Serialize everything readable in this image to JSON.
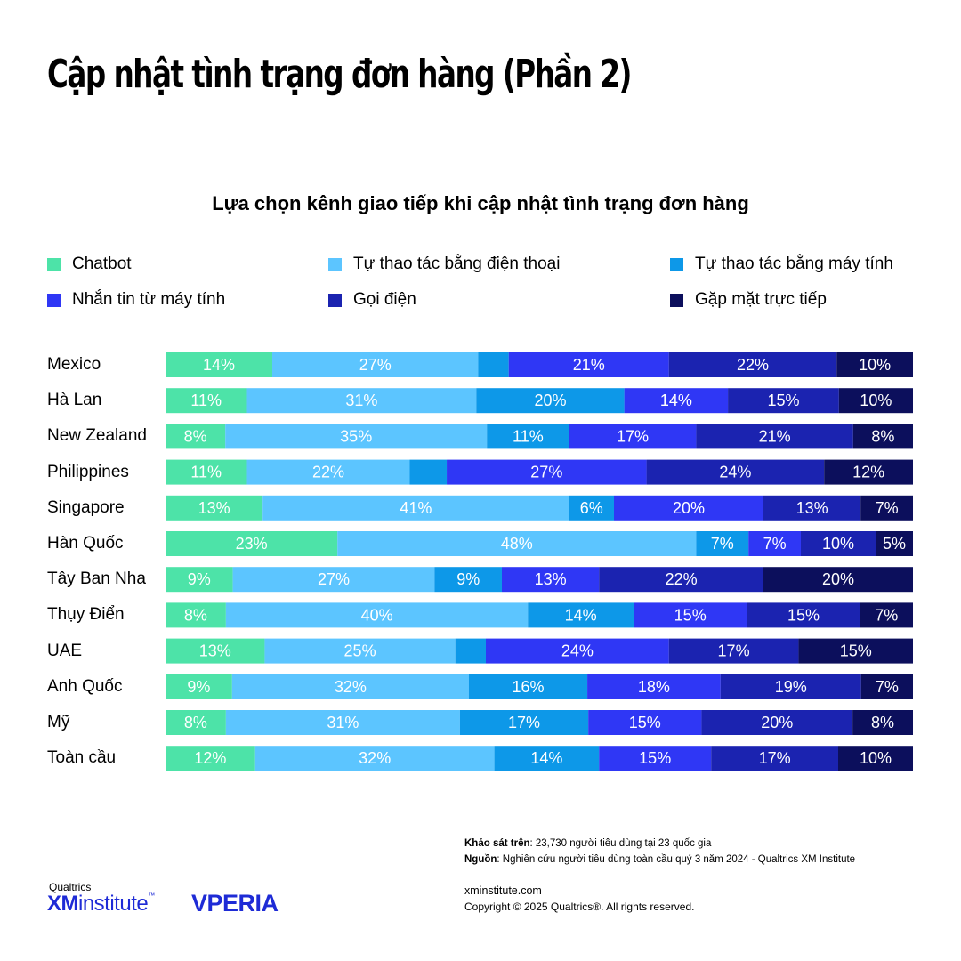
{
  "title": "Cập nhật tình trạng đơn hàng (Phần 2)",
  "chart_data": {
    "type": "bar",
    "orientation": "horizontal",
    "stacked": true,
    "title": "Lựa chọn kênh giao tiếp khi cập nhật tình trạng đơn hàng",
    "legend_position": "top",
    "categories": [
      "Mexico",
      "Hà Lan",
      "New Zealand",
      "Philippines",
      "Singapore",
      "Hàn Quốc",
      "Tây Ban Nha",
      "Thụy Điển",
      "UAE",
      "Anh Quốc",
      "Mỹ",
      "Toàn cầu"
    ],
    "series": [
      {
        "name": "Chatbot",
        "color": "#4de3a8",
        "values": [
          14,
          11,
          8,
          11,
          13,
          23,
          9,
          8,
          13,
          9,
          8,
          12
        ]
      },
      {
        "name": "Tự thao tác bằng điện thoại",
        "color": "#5cc5ff",
        "values": [
          27,
          31,
          35,
          22,
          41,
          48,
          27,
          40,
          25,
          32,
          31,
          32
        ]
      },
      {
        "name": "Tự thao tác bằng máy tính",
        "color": "#0d98e8",
        "values": [
          4,
          20,
          11,
          5,
          6,
          7,
          9,
          14,
          4,
          16,
          17,
          14
        ]
      },
      {
        "name": "Nhắn tin từ máy tính",
        "color": "#2f37f5",
        "values": [
          21,
          14,
          17,
          27,
          20,
          7,
          13,
          15,
          24,
          18,
          15,
          15
        ]
      },
      {
        "name": "Gọi điện",
        "color": "#1b23b0",
        "values": [
          22,
          15,
          21,
          24,
          13,
          10,
          22,
          15,
          17,
          19,
          20,
          17
        ]
      },
      {
        "name": "Gặp mặt trực tiếp",
        "color": "#0c0f5c",
        "values": [
          10,
          10,
          8,
          12,
          7,
          5,
          20,
          7,
          15,
          7,
          8,
          10
        ]
      }
    ],
    "labels": [
      [
        "14%",
        "27%",
        "",
        "21%",
        "22%",
        "10%"
      ],
      [
        "11%",
        "31%",
        "20%",
        "14%",
        "15%",
        "10%"
      ],
      [
        "8%",
        "35%",
        "11%",
        "17%",
        "21%",
        "8%"
      ],
      [
        "11%",
        "22%",
        "",
        "27%",
        "24%",
        "12%"
      ],
      [
        "13%",
        "41%",
        "6%",
        "20%",
        "13%",
        "7%"
      ],
      [
        "23%",
        "48%",
        "7%",
        "7%",
        "10%",
        "5%"
      ],
      [
        "9%",
        "27%",
        "9%",
        "13%",
        "22%",
        "20%"
      ],
      [
        "8%",
        "40%",
        "14%",
        "15%",
        "15%",
        "7%"
      ],
      [
        "13%",
        "25%",
        "",
        "24%",
        "17%",
        "15%"
      ],
      [
        "9%",
        "32%",
        "16%",
        "18%",
        "19%",
        "7%"
      ],
      [
        "8%",
        "31%",
        "17%",
        "15%",
        "20%",
        "8%"
      ],
      [
        "12%",
        "32%",
        "14%",
        "15%",
        "17%",
        "10%"
      ]
    ]
  },
  "footer": {
    "survey_label": "Khảo sát trên",
    "survey_text": ": 23,730 người tiêu dùng tại 23 quốc gia",
    "source_label": "Nguồn",
    "source_text": ": Nghiên cứu người tiêu dùng toàn cầu quý 3 năm 2024 - Qualtrics XM Institute",
    "website": "xminstitute.com",
    "copyright": "Copyright © 2025 Qualtrics®. All rights reserved."
  },
  "logos": {
    "qualtrics": "Qualtrics",
    "xm": "XM",
    "institute": "institute",
    "tm": "™",
    "vperia": "VPERIA"
  }
}
